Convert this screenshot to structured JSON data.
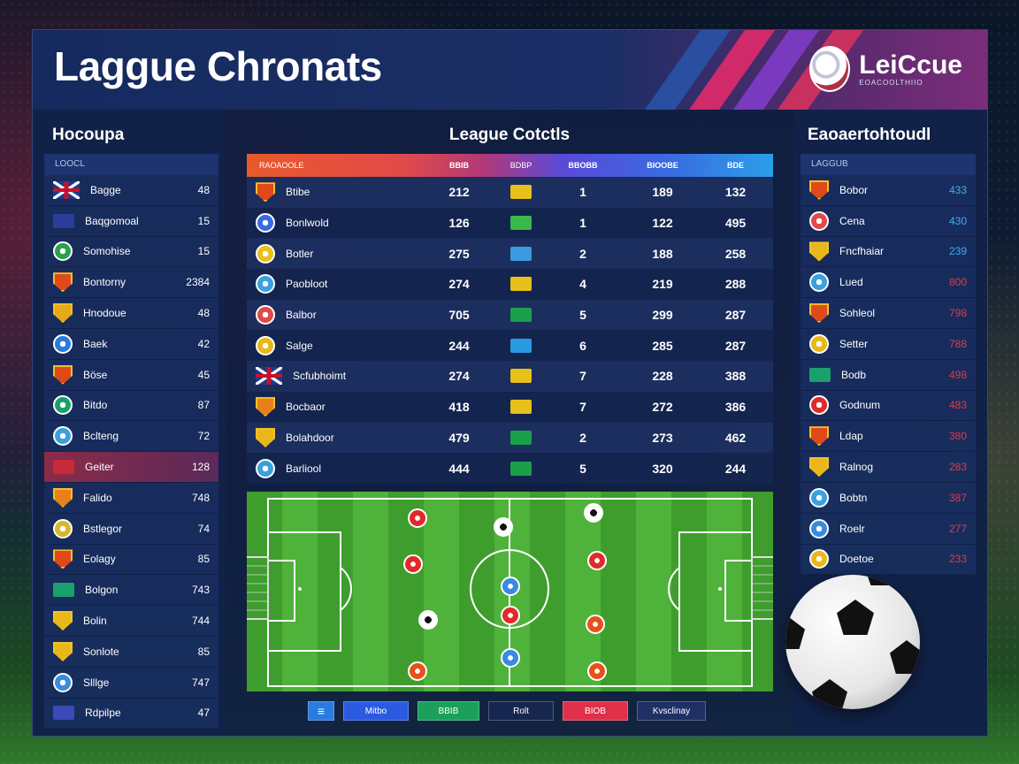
{
  "header": {
    "title": "Laggue Chronats",
    "logo_text": "LeiCcue",
    "logo_sub": "EOACOOLTHIIO"
  },
  "left": {
    "title": "Hocoupa",
    "head": "LOOCL",
    "rows": [
      {
        "name": "Bagge",
        "value": "48",
        "badge": "uk",
        "color": ""
      },
      {
        "name": "Baqgomoal",
        "value": "15",
        "badge": "rect",
        "color": "#2a3e9a"
      },
      {
        "name": "Somohise",
        "value": "15",
        "badge": "round",
        "color": "#2aa04a"
      },
      {
        "name": "Bontorny",
        "value": "2384",
        "badge": "shield",
        "color": "#e04a1a"
      },
      {
        "name": "Hnodoue",
        "value": "48",
        "badge": "shield",
        "color": "#e8a81a"
      },
      {
        "name": "Baek",
        "value": "42",
        "badge": "round",
        "color": "#2a7ae0"
      },
      {
        "name": "Böse",
        "value": "45",
        "badge": "shield",
        "color": "#e04a1a"
      },
      {
        "name": "Bitdo",
        "value": "87",
        "badge": "round",
        "color": "#1aa06a"
      },
      {
        "name": "Bclteng",
        "value": "72",
        "badge": "round",
        "color": "#3aa0e0"
      },
      {
        "name": "Geiter",
        "value": "128",
        "badge": "rect",
        "color": "#c82a3a",
        "highlight": true
      },
      {
        "name": "Falido",
        "value": "748",
        "badge": "shield",
        "color": "#e8801a"
      },
      {
        "name": "Bstlegor",
        "value": "74",
        "badge": "round",
        "color": "#d8b82a"
      },
      {
        "name": "Eolagy",
        "value": "85",
        "badge": "shield",
        "color": "#e04a1a"
      },
      {
        "name": "Bolgon",
        "value": "743",
        "badge": "rect",
        "color": "#1aa06a"
      },
      {
        "name": "Bolin",
        "value": "744",
        "badge": "shield",
        "color": "#e8b81a"
      },
      {
        "name": "Sonlote",
        "value": "85",
        "badge": "shield",
        "color": "#e8b81a"
      },
      {
        "name": "Slllge",
        "value": "747",
        "badge": "round",
        "color": "#3a8ae0"
      },
      {
        "name": "Rdpilpe",
        "value": "47",
        "badge": "rect",
        "color": "#3a4ab8"
      }
    ]
  },
  "center": {
    "title": "League Cotctls",
    "columns": [
      "RAOAOOLE",
      "BBIB",
      "BDBP",
      "BBOBB",
      "BIOOBE",
      "BDE"
    ],
    "rows": [
      {
        "team": "Btibe",
        "a": "212",
        "flag": "#e8c01a",
        "b": "1",
        "c": "189",
        "d": "132",
        "badge": "shield",
        "color": "#e04a1a"
      },
      {
        "team": "Bonlwold",
        "a": "126",
        "flag": "#3ab84a",
        "b": "1",
        "c": "122",
        "d": "495",
        "badge": "round",
        "color": "#3a6ae0"
      },
      {
        "team": "Botler",
        "a": "275",
        "flag": "#3a9ae0",
        "b": "2",
        "c": "188",
        "d": "258",
        "badge": "round",
        "color": "#e8c01a"
      },
      {
        "team": "Paobloot",
        "a": "274",
        "flag": "#e8c01a",
        "b": "4",
        "c": "219",
        "d": "288",
        "badge": "round",
        "color": "#3aa0e0"
      },
      {
        "team": "Balbor",
        "a": "705",
        "flag": "#1aa04a",
        "b": "5",
        "c": "299",
        "d": "287",
        "badge": "round",
        "color": "#e04a4a"
      },
      {
        "team": "Salge",
        "a": "244",
        "flag": "#2a9ae0",
        "b": "6",
        "c": "285",
        "d": "287",
        "badge": "round",
        "color": "#e8b81a"
      },
      {
        "team": "Scfubhoimt",
        "a": "274",
        "flag": "#e8c01a",
        "b": "7",
        "c": "228",
        "d": "388",
        "badge": "uk",
        "color": ""
      },
      {
        "team": "Bocbaor",
        "a": "418",
        "flag": "#e8c01a",
        "b": "7",
        "c": "272",
        "d": "386",
        "badge": "shield",
        "color": "#e8801a"
      },
      {
        "team": "Bolahdoor",
        "a": "479",
        "flag": "#1aa04a",
        "b": "2",
        "c": "273",
        "d": "462",
        "badge": "shield",
        "color": "#e8b81a"
      },
      {
        "team": "Barliool",
        "a": "444",
        "flag": "#1aa04a",
        "b": "5",
        "c": "320",
        "d": "244",
        "badge": "round",
        "color": "#3aa0e0"
      }
    ],
    "pitch_tokens": [
      {
        "color": "#e02a2a",
        "kind": "red"
      },
      {
        "color": "#ffffff",
        "kind": "ball"
      },
      {
        "color": "#ffffff",
        "kind": "ball"
      },
      {
        "color": "#e02a2a",
        "kind": "red"
      },
      {
        "color": "#e02a2a",
        "kind": "red"
      },
      {
        "color": "#3a8ae0",
        "kind": "blue"
      },
      {
        "color": "#ffffff",
        "kind": "ball"
      },
      {
        "color": "#e02a2a",
        "kind": "red"
      },
      {
        "color": "#e8501a",
        "kind": "orange"
      },
      {
        "color": "#3a8ae0",
        "kind": "blue"
      },
      {
        "color": "#e8501a",
        "kind": "orange"
      },
      {
        "color": "#e8501a",
        "kind": "orange"
      }
    ],
    "controls": [
      {
        "label": "",
        "color": "#2a7ae0"
      },
      {
        "label": "Mitbo",
        "color": "#2a5ae0"
      },
      {
        "label": "BBIB",
        "color": "#1aa05a"
      },
      {
        "label": "Rolt",
        "color": "#16264e"
      },
      {
        "label": "BIOB",
        "color": "#e0304a"
      },
      {
        "label": "Kvsclinay",
        "color": "#1e3064"
      }
    ]
  },
  "right": {
    "title": "Eaoaertohtoudl",
    "head": "LAGGUB",
    "rows": [
      {
        "name": "Bobor",
        "value": "433",
        "vcolor": "#3ab0f0",
        "badge": "shield",
        "color": "#e04a1a"
      },
      {
        "name": "Cena",
        "value": "430",
        "vcolor": "#3ab0f0",
        "badge": "round",
        "color": "#e04a4a"
      },
      {
        "name": "Fncfhaiar",
        "value": "239",
        "vcolor": "#3ab0f0",
        "badge": "shield",
        "color": "#e8b81a"
      },
      {
        "name": "Lued",
        "value": "800",
        "vcolor": "#e03a4a",
        "badge": "round",
        "color": "#3aa0e0"
      },
      {
        "name": "Sohleol",
        "value": "798",
        "vcolor": "#e03a4a",
        "badge": "shield",
        "color": "#e04a1a"
      },
      {
        "name": "Setter",
        "value": "788",
        "vcolor": "#e03a4a",
        "badge": "round",
        "color": "#e8b81a"
      },
      {
        "name": "Bodb",
        "value": "498",
        "vcolor": "#e03a4a",
        "badge": "rect",
        "color": "#1aa06a"
      },
      {
        "name": "Godnum",
        "value": "483",
        "vcolor": "#e03a4a",
        "badge": "round",
        "color": "#e02a2a"
      },
      {
        "name": "Ldap",
        "value": "380",
        "vcolor": "#e03a4a",
        "badge": "shield",
        "color": "#e04a1a"
      },
      {
        "name": "Ralnog",
        "value": "283",
        "vcolor": "#e03a4a",
        "badge": "shield",
        "color": "#e8b81a"
      },
      {
        "name": "Bobtn",
        "value": "387",
        "vcolor": "#e03a4a",
        "badge": "round",
        "color": "#3aa0e0"
      },
      {
        "name": "Roelr",
        "value": "277",
        "vcolor": "#e03a4a",
        "badge": "round",
        "color": "#3a8ae0"
      },
      {
        "name": "Doetoe",
        "value": "233",
        "vcolor": "#e03a4a",
        "badge": "round",
        "color": "#e8b81a"
      }
    ]
  }
}
